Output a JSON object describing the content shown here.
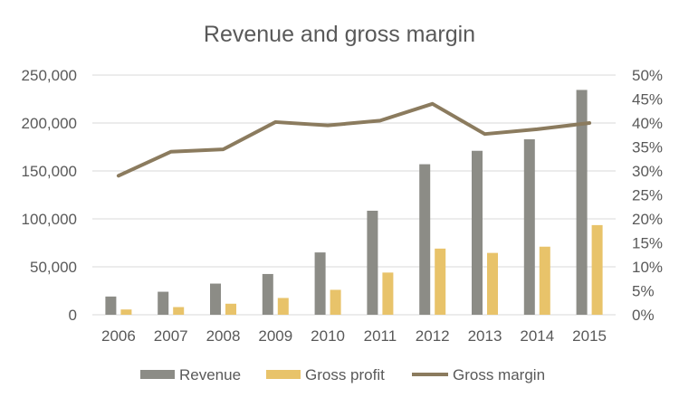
{
  "chart_data": {
    "type": "bar",
    "title": "Revenue and gross margin",
    "categories": [
      "2006",
      "2007",
      "2008",
      "2009",
      "2010",
      "2011",
      "2012",
      "2013",
      "2014",
      "2015"
    ],
    "series": [
      {
        "name": "Revenue",
        "type": "bar",
        "axis": "left",
        "color": "#8c8c86",
        "values": [
          19000,
          24000,
          32500,
          42500,
          65000,
          108500,
          157000,
          171000,
          183000,
          234500
        ]
      },
      {
        "name": "Gross profit",
        "type": "bar",
        "axis": "left",
        "color": "#e8c36a",
        "values": [
          5500,
          8000,
          11500,
          17500,
          26000,
          44000,
          69000,
          64500,
          71000,
          93500
        ]
      },
      {
        "name": "Gross margin",
        "type": "line",
        "axis": "right",
        "color": "#8b7b5e",
        "values": [
          0.29,
          0.34,
          0.345,
          0.402,
          0.395,
          0.405,
          0.44,
          0.377,
          0.387,
          0.4
        ]
      }
    ],
    "y_left": {
      "min": 0,
      "max": 250000,
      "step": 50000,
      "tick_labels": [
        "0",
        "50,000",
        "100,000",
        "150,000",
        "200,000",
        "250,000"
      ]
    },
    "y_right": {
      "min": 0,
      "max": 0.5,
      "step": 0.05,
      "tick_labels": [
        "0%",
        "5%",
        "10%",
        "15%",
        "20%",
        "25%",
        "30%",
        "35%",
        "40%",
        "45%",
        "50%"
      ]
    },
    "xlabel": "",
    "ylabel": "",
    "grid": true,
    "legend": "bottom"
  }
}
